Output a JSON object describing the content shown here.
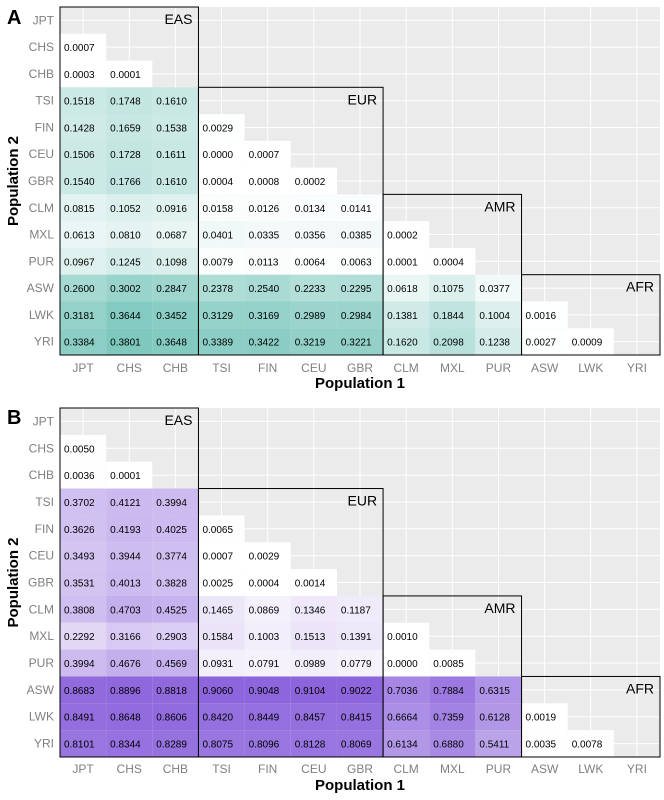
{
  "chart_data": [
    {
      "type": "heatmap",
      "panel": "A",
      "color_scheme": {
        "low": "#ffffff",
        "high": "#7ec8be",
        "max_value": 0.3801
      },
      "x_categories": [
        "JPT",
        "CHS",
        "CHB",
        "TSI",
        "FIN",
        "CEU",
        "GBR",
        "CLM",
        "MXL",
        "PUR",
        "ASW",
        "LWK",
        "YRI"
      ],
      "y_categories": [
        "JPT",
        "CHS",
        "CHB",
        "TSI",
        "FIN",
        "CEU",
        "GBR",
        "CLM",
        "MXL",
        "PUR",
        "ASW",
        "LWK",
        "YRI"
      ],
      "xlabel": "Population 1",
      "ylabel": "Population 2",
      "groups": [
        {
          "name": "EAS",
          "members": [
            "JPT",
            "CHS",
            "CHB"
          ]
        },
        {
          "name": "EUR",
          "members": [
            "TSI",
            "FIN",
            "CEU",
            "GBR"
          ]
        },
        {
          "name": "AMR",
          "members": [
            "CLM",
            "MXL",
            "PUR"
          ]
        },
        {
          "name": "AFR",
          "members": [
            "ASW",
            "LWK",
            "YRI"
          ]
        }
      ],
      "rows": [
        [],
        [
          "0.0007"
        ],
        [
          "0.0003",
          "0.0001"
        ],
        [
          "0.1518",
          "0.1748",
          "0.1610"
        ],
        [
          "0.1428",
          "0.1659",
          "0.1538",
          "0.0029"
        ],
        [
          "0.1506",
          "0.1728",
          "0.1611",
          "0.0000",
          "0.0007"
        ],
        [
          "0.1540",
          "0.1766",
          "0.1610",
          "0.0004",
          "0.0008",
          "0.0002"
        ],
        [
          "0.0815",
          "0.1052",
          "0.0916",
          "0.0158",
          "0.0126",
          "0.0134",
          "0.0141"
        ],
        [
          "0.0613",
          "0.0810",
          "0.0687",
          "0.0401",
          "0.0335",
          "0.0356",
          "0.0385",
          "0.0002"
        ],
        [
          "0.0967",
          "0.1245",
          "0.1098",
          "0.0079",
          "0.0113",
          "0.0064",
          "0.0063",
          "0.0001",
          "0.0004"
        ],
        [
          "0.2600",
          "0.3002",
          "0.2847",
          "0.2378",
          "0.2540",
          "0.2233",
          "0.2295",
          "0.0618",
          "0.1075",
          "0.0377"
        ],
        [
          "0.3181",
          "0.3644",
          "0.3452",
          "0.3129",
          "0.3169",
          "0.2989",
          "0.2984",
          "0.1381",
          "0.1844",
          "0.1004",
          "0.0016"
        ],
        [
          "0.3384",
          "0.3801",
          "0.3648",
          "0.3389",
          "0.3422",
          "0.3219",
          "0.3221",
          "0.1620",
          "0.2098",
          "0.1238",
          "0.0027",
          "0.0009"
        ]
      ]
    },
    {
      "type": "heatmap",
      "panel": "B",
      "color_scheme": {
        "low": "#ffffff",
        "high": "#8c64dc",
        "max_value": 0.9104
      },
      "x_categories": [
        "JPT",
        "CHS",
        "CHB",
        "TSI",
        "FIN",
        "CEU",
        "GBR",
        "CLM",
        "MXL",
        "PUR",
        "ASW",
        "LWK",
        "YRI"
      ],
      "y_categories": [
        "JPT",
        "CHS",
        "CHB",
        "TSI",
        "FIN",
        "CEU",
        "GBR",
        "CLM",
        "MXL",
        "PUR",
        "ASW",
        "LWK",
        "YRI"
      ],
      "xlabel": "Population 1",
      "ylabel": "Population 2",
      "groups": [
        {
          "name": "EAS",
          "members": [
            "JPT",
            "CHS",
            "CHB"
          ]
        },
        {
          "name": "EUR",
          "members": [
            "TSI",
            "FIN",
            "CEU",
            "GBR"
          ]
        },
        {
          "name": "AMR",
          "members": [
            "CLM",
            "MXL",
            "PUR"
          ]
        },
        {
          "name": "AFR",
          "members": [
            "ASW",
            "LWK",
            "YRI"
          ]
        }
      ],
      "rows": [
        [],
        [
          "0.0050"
        ],
        [
          "0.0036",
          "0.0001"
        ],
        [
          "0.3702",
          "0.4121",
          "0.3994"
        ],
        [
          "0.3626",
          "0.4193",
          "0.4025",
          "0.0065"
        ],
        [
          "0.3493",
          "0.3944",
          "0.3774",
          "0.0007",
          "0.0029"
        ],
        [
          "0.3531",
          "0.4013",
          "0.3828",
          "0.0025",
          "0.0004",
          "0.0014"
        ],
        [
          "0.3808",
          "0.4703",
          "0.4525",
          "0.1465",
          "0.0869",
          "0.1346",
          "0.1187"
        ],
        [
          "0.2292",
          "0.3166",
          "0.2903",
          "0.1584",
          "0.1003",
          "0.1513",
          "0.1391",
          "0.0010"
        ],
        [
          "0.3994",
          "0.4676",
          "0.4569",
          "0.0931",
          "0.0791",
          "0.0989",
          "0.0779",
          "0.0000",
          "0.0085"
        ],
        [
          "0.8683",
          "0.8896",
          "0.8818",
          "0.9060",
          "0.9048",
          "0.9104",
          "0.9022",
          "0.7036",
          "0.7884",
          "0.6315"
        ],
        [
          "0.8491",
          "0.8648",
          "0.8606",
          "0.8420",
          "0.8449",
          "0.8457",
          "0.8415",
          "0.6664",
          "0.7359",
          "0.6128",
          "0.0019"
        ],
        [
          "0.8101",
          "0.8344",
          "0.8289",
          "0.8075",
          "0.8096",
          "0.8128",
          "0.8069",
          "0.6134",
          "0.6880",
          "0.5411",
          "0.0035",
          "0.0078"
        ]
      ]
    }
  ]
}
